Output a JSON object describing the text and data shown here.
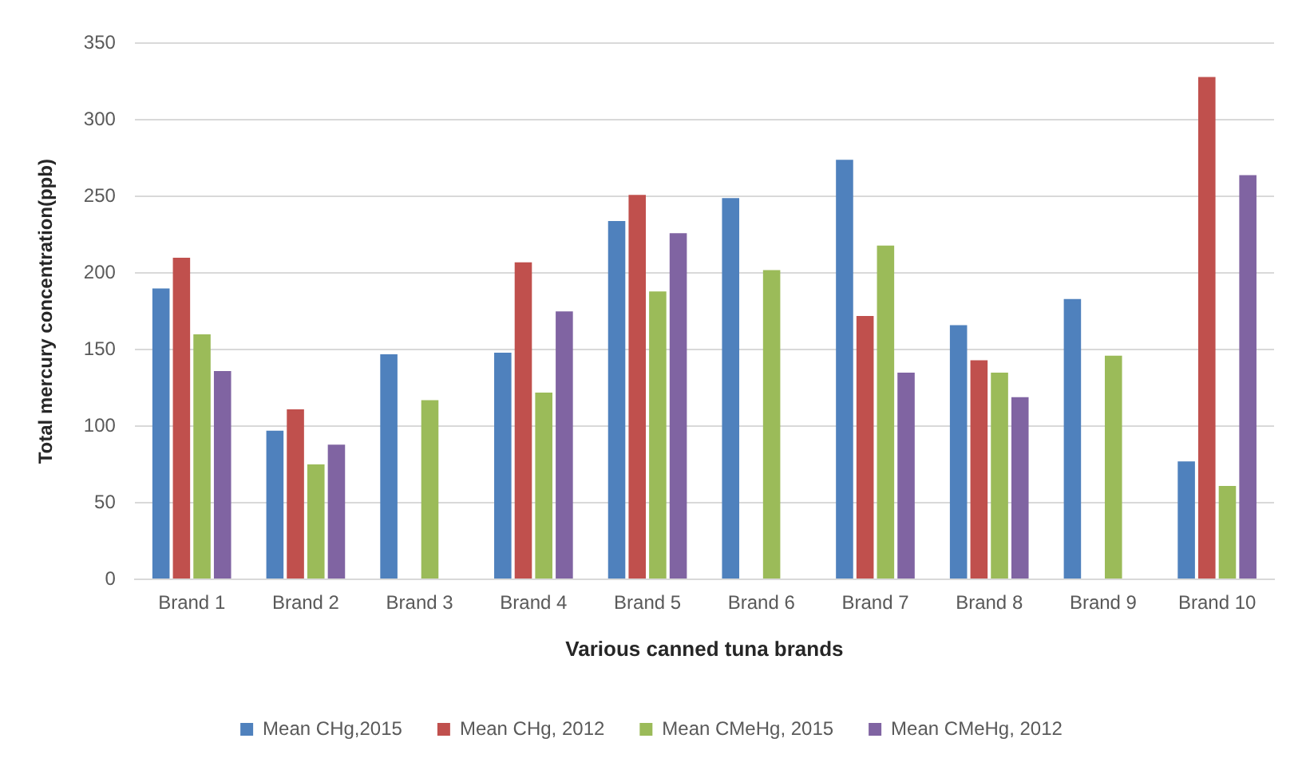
{
  "chart_data": {
    "type": "bar",
    "xlabel": "Various canned tuna brands",
    "ylabel": "Total mercury concentration(ppb)",
    "categories": [
      "Brand 1",
      "Brand 2",
      "Brand 3",
      "Brand 4",
      "Brand 5",
      "Brand 6",
      "Brand 7",
      "Brand 8",
      "Brand 9",
      "Brand 10"
    ],
    "series": [
      {
        "name": "Mean CHg,2015",
        "color": "#4f81bd",
        "values": [
          190,
          97,
          147,
          148,
          234,
          249,
          274,
          166,
          183,
          77
        ]
      },
      {
        "name": "Mean CHg, 2012",
        "color": "#c0504d",
        "values": [
          210,
          111,
          null,
          207,
          251,
          null,
          172,
          143,
          null,
          328
        ]
      },
      {
        "name": "Mean CMeHg, 2015",
        "color": "#9bbb59",
        "values": [
          160,
          75,
          117,
          122,
          188,
          202,
          218,
          135,
          146,
          61
        ]
      },
      {
        "name": "Mean CMeHg, 2012",
        "color": "#8064a2",
        "values": [
          136,
          88,
          null,
          175,
          226,
          null,
          135,
          119,
          null,
          264
        ]
      }
    ],
    "ylim": [
      0,
      350
    ],
    "yticks": [
      0,
      50,
      100,
      150,
      200,
      250,
      300,
      350
    ],
    "grid": "y",
    "legend": "bottom"
  }
}
